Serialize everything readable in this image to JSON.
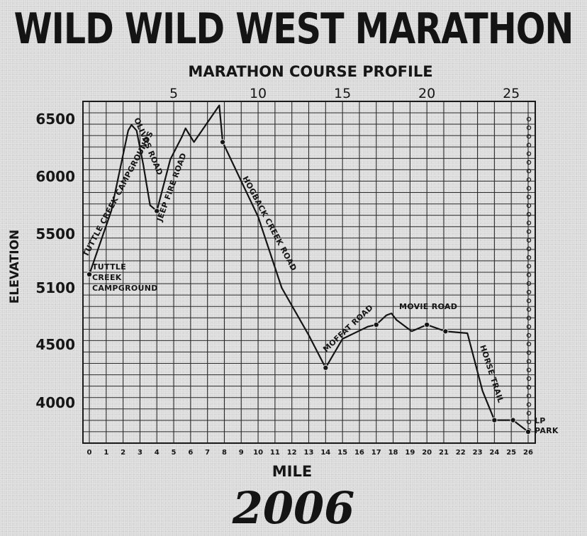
{
  "header": {
    "title": "WILD WILD WEST MARATHON"
  },
  "footer": {
    "year": "2006"
  },
  "chart_data": {
    "type": "line",
    "title": "MARATHON COURSE PROFILE",
    "xlabel": "MILE",
    "ylabel": "ELEVATION",
    "x_ticks": [
      "0",
      "1",
      "2",
      "3",
      "4",
      "5",
      "6",
      "7",
      "8",
      "9",
      "10",
      "11",
      "12",
      "13",
      "14",
      "15",
      "16",
      "17",
      "18",
      "19",
      "20",
      "21",
      "22",
      "23",
      "24",
      "25",
      "26"
    ],
    "top_ticks": [
      "5",
      "10",
      "15",
      "20",
      "25"
    ],
    "y_ticks": [
      "6500",
      "6000",
      "5500",
      "5100",
      "4500",
      "4000"
    ],
    "xlim": [
      0,
      26
    ],
    "ylim": [
      3700,
      6650
    ],
    "grid": true,
    "series": [
      {
        "points": [
          {
            "x": 0,
            "y": 5200
          },
          {
            "x": 1.3,
            "y": 5700
          },
          {
            "x": 2.3,
            "y": 6400
          },
          {
            "x": 2.5,
            "y": 6450
          },
          {
            "x": 2.8,
            "y": 6400
          },
          {
            "x": 3.2,
            "y": 6100
          },
          {
            "x": 3.6,
            "y": 5750
          },
          {
            "x": 4.0,
            "y": 5700
          },
          {
            "x": 4.8,
            "y": 6150
          },
          {
            "x": 5.5,
            "y": 6350
          },
          {
            "x": 5.7,
            "y": 6420
          },
          {
            "x": 6.2,
            "y": 6300
          },
          {
            "x": 7.7,
            "y": 6620
          },
          {
            "x": 7.9,
            "y": 6300
          },
          {
            "x": 10.0,
            "y": 5650
          },
          {
            "x": 11.4,
            "y": 5100
          },
          {
            "x": 13.0,
            "y": 4600
          },
          {
            "x": 14.0,
            "y": 4300
          },
          {
            "x": 15.0,
            "y": 4560
          },
          {
            "x": 16.5,
            "y": 4690
          },
          {
            "x": 17.0,
            "y": 4710
          },
          {
            "x": 17.6,
            "y": 4810
          },
          {
            "x": 17.9,
            "y": 4830
          },
          {
            "x": 18.2,
            "y": 4760
          },
          {
            "x": 19.1,
            "y": 4640
          },
          {
            "x": 20.0,
            "y": 4710
          },
          {
            "x": 21.1,
            "y": 4640
          },
          {
            "x": 22.4,
            "y": 4620
          },
          {
            "x": 23.3,
            "y": 4100
          },
          {
            "x": 24.0,
            "y": 3850
          },
          {
            "x": 25.1,
            "y": 3850
          },
          {
            "x": 26.0,
            "y": 3750
          }
        ],
        "marked_x": [
          0,
          4.0,
          7.9,
          14.0,
          17.0,
          20.0,
          21.1,
          24.0,
          25.1,
          26.0
        ]
      }
    ],
    "annotations": [
      {
        "id": "tuttle-creek-campground",
        "text": [
          "TUTTLE",
          "CREEK",
          "CAMPGROUND"
        ]
      },
      {
        "id": "tuttle-creek-campgrounds",
        "text": "TUTTLE CREEK CAMPGROUNDS"
      },
      {
        "id": "olivas-road",
        "text": "OLIVAS ROAD"
      },
      {
        "id": "jeep-fire-road",
        "text": "JEEP FIRE ROAD"
      },
      {
        "id": "hogback-creek-road",
        "text": "HOGBACK CREEK ROAD"
      },
      {
        "id": "moffat-road",
        "text": "MOFFAT ROAD"
      },
      {
        "id": "movie-road",
        "text": "MOVIE ROAD"
      },
      {
        "id": "horse-trail",
        "text": "HORSE TRAIL"
      },
      {
        "id": "lp-park",
        "text": [
          "LP",
          "PARK"
        ]
      }
    ]
  }
}
